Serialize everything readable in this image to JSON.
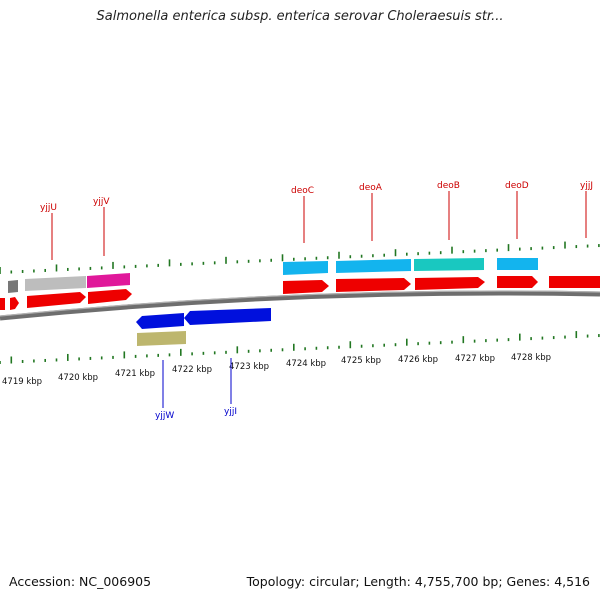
{
  "title": "Salmonella enterica subsp. enterica serovar Choleraesuis str...",
  "footer": {
    "accession": "Accession: NC_006905",
    "summary": "Topology: circular; Length: 4,755,700 bp; Genes: 4,516"
  },
  "colors": {
    "forward_label": "#cc0000",
    "reverse_label": "#0000cc",
    "tick": "#227722",
    "backbone": "#777777",
    "cds_forward": "#ff0000",
    "cds_reverse": "#0000dd"
  },
  "scale_labels": [
    "4719 kbp",
    "4720 kbp",
    "4721 kbp",
    "4722 kbp",
    "4723 kbp",
    "4724 kbp",
    "4725 kbp",
    "4726 kbp",
    "4727 kbp",
    "4728 kbp"
  ],
  "forward_genes": [
    "yjjU",
    "yjjV",
    "deoC",
    "deoA",
    "deoB",
    "deoD",
    "yjjJ"
  ],
  "reverse_genes": [
    "yjjW",
    "yjjI"
  ]
}
